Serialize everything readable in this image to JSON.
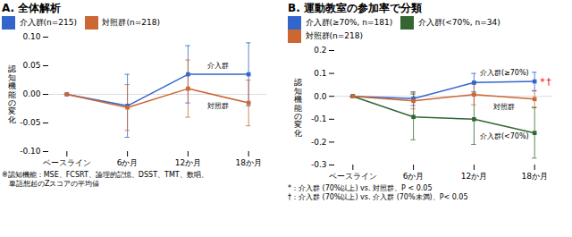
{
  "chart_data": [
    {
      "type": "line",
      "title": "A. 全体解析",
      "ylabel": "認\n知\n機\n能\nの\n変\n化",
      "categories": [
        "ベースライン",
        "6か月",
        "12か月",
        "18か月"
      ],
      "series": [
        {
          "name": "介入群(n=215)",
          "color": "#3366CC",
          "marker": "s",
          "values": [
            0.0,
            -0.02,
            0.035,
            0.035
          ],
          "error_low": [
            0.0,
            0.055,
            0.05,
            0.055
          ],
          "error_high": [
            0.0,
            0.055,
            0.05,
            0.055
          ]
        },
        {
          "name": "対照群(n=218)",
          "color": "#CC6633",
          "marker": "s",
          "values": [
            0.0,
            -0.023,
            0.01,
            -0.015
          ],
          "error_low": [
            0.0,
            0.04,
            0.05,
            0.04
          ],
          "error_high": [
            0.0,
            0.04,
            0.05,
            0.04
          ]
        }
      ],
      "ylim": [
        -0.1,
        0.1
      ],
      "yticks": [
        {
          "value": -0.1,
          "label": "-0.10"
        },
        -0.05,
        {
          "value": 0.0,
          "label": "0.00"
        },
        0.05,
        {
          "value": 0.1,
          "label": "0.10"
        }
      ],
      "hline": 0,
      "annotations": [
        {
          "text": "介入群",
          "series": "介入群(n=215)"
        },
        {
          "text": "対照群",
          "series": "対照群(n=218)"
        }
      ],
      "legend": "upper left",
      "grid": false,
      "footnote": "※認知機能：MSE、FCSRT、論理的記憶、DSST、TMT、数唱、\n　単語想起のZスコアの平均値"
    },
    {
      "type": "line",
      "title": "B. 運動教室の参加率で分類",
      "ylabel": "認\n知\n機\n能\nの\n変\n化",
      "categories": [
        "ベースライン",
        "6か月",
        "12か月",
        "18か月"
      ],
      "series": [
        {
          "name": "介入群(≥70%, n=181)",
          "color": "#3366CC",
          "marker": "s",
          "values": [
            0.0,
            -0.01,
            0.06,
            0.065
          ],
          "error_low": [
            0.0,
            0.03,
            0.04,
            0.04
          ],
          "error_high": [
            0.0,
            0.03,
            0.04,
            0.04
          ]
        },
        {
          "name": "介入群(<70%, n=34)",
          "color": "#336633",
          "marker": "s",
          "values": [
            0.0,
            -0.09,
            -0.1,
            -0.16
          ],
          "error_low": [
            0.0,
            0.1,
            0.11,
            0.11
          ],
          "error_high": [
            0.0,
            0.1,
            0.11,
            0.11
          ]
        },
        {
          "name": "対照群(n=218)",
          "color": "#CC6633",
          "marker": "s",
          "values": [
            0.0,
            -0.02,
            0.008,
            -0.012
          ],
          "error_low": [
            0.0,
            0.035,
            0.045,
            0.035
          ],
          "error_high": [
            0.0,
            0.035,
            0.045,
            0.035
          ]
        }
      ],
      "ylim": [
        -0.3,
        0.2
      ],
      "yticks": [
        -0.3,
        -0.2,
        -0.1,
        {
          "value": 0.0,
          "label": "0.0"
        },
        0.1,
        0.2
      ],
      "hline": 0,
      "annotations": [
        {
          "text": "介入群(≥70%)",
          "series": "介入群(≥70%, n=181)"
        },
        {
          "text": "対照群",
          "series": "対照群(n=218)"
        },
        {
          "text": "介入群(<70%)",
          "series": "介入群(<70%, n=34)"
        }
      ],
      "significance": [
        {
          "text": "*",
          "series": "介入群(≥70%, n=181)",
          "color": "red"
        },
        {
          "text": "†",
          "series": "介入群(≥70%, n=181)",
          "color": "red"
        }
      ],
      "legend": "upper left",
      "grid": false,
      "footnote": "*：介入群 (70%以上) vs. 対照群、P < 0.05\n†：介入群 (70%以上) vs. 介入群 (70%未満)、P< 0.05"
    }
  ]
}
